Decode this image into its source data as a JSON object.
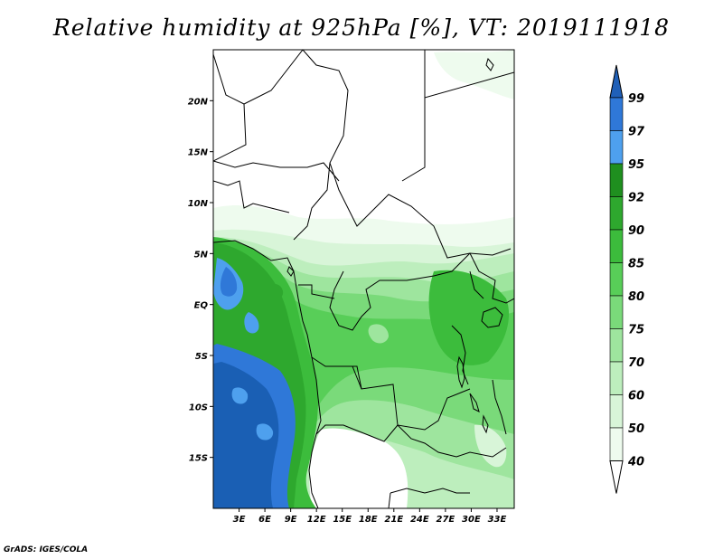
{
  "title": "Relative humidity at 925hPa [%], VT: 2019111918",
  "footer": "GrADS: IGES/COLA",
  "map": {
    "lon_range": [
      0,
      35
    ],
    "lat_range": [
      -20,
      25
    ],
    "lon_ticks": [
      "3E",
      "6E",
      "9E",
      "12E",
      "15E",
      "18E",
      "21E",
      "24E",
      "27E",
      "30E",
      "33E"
    ],
    "lat_ticks": [
      "20N",
      "15N",
      "10N",
      "5N",
      "EQ",
      "5S",
      "10S",
      "15S"
    ]
  },
  "colorbar": {
    "levels": [
      "99",
      "97",
      "95",
      "92",
      "90",
      "85",
      "80",
      "75",
      "70",
      "60",
      "50",
      "40"
    ],
    "colors": [
      "#1a5fb4",
      "#2f78d8",
      "#4ea0ee",
      "#1f8f1f",
      "#2ea82e",
      "#3cbc3c",
      "#58ce58",
      "#7ada7a",
      "#9ee59e",
      "#bdeebd",
      "#d8f5d8",
      "#eefbee",
      "#ffffff"
    ],
    "top_cap_color": "#2060b8",
    "bottom_cap_color": "#ffffff"
  }
}
